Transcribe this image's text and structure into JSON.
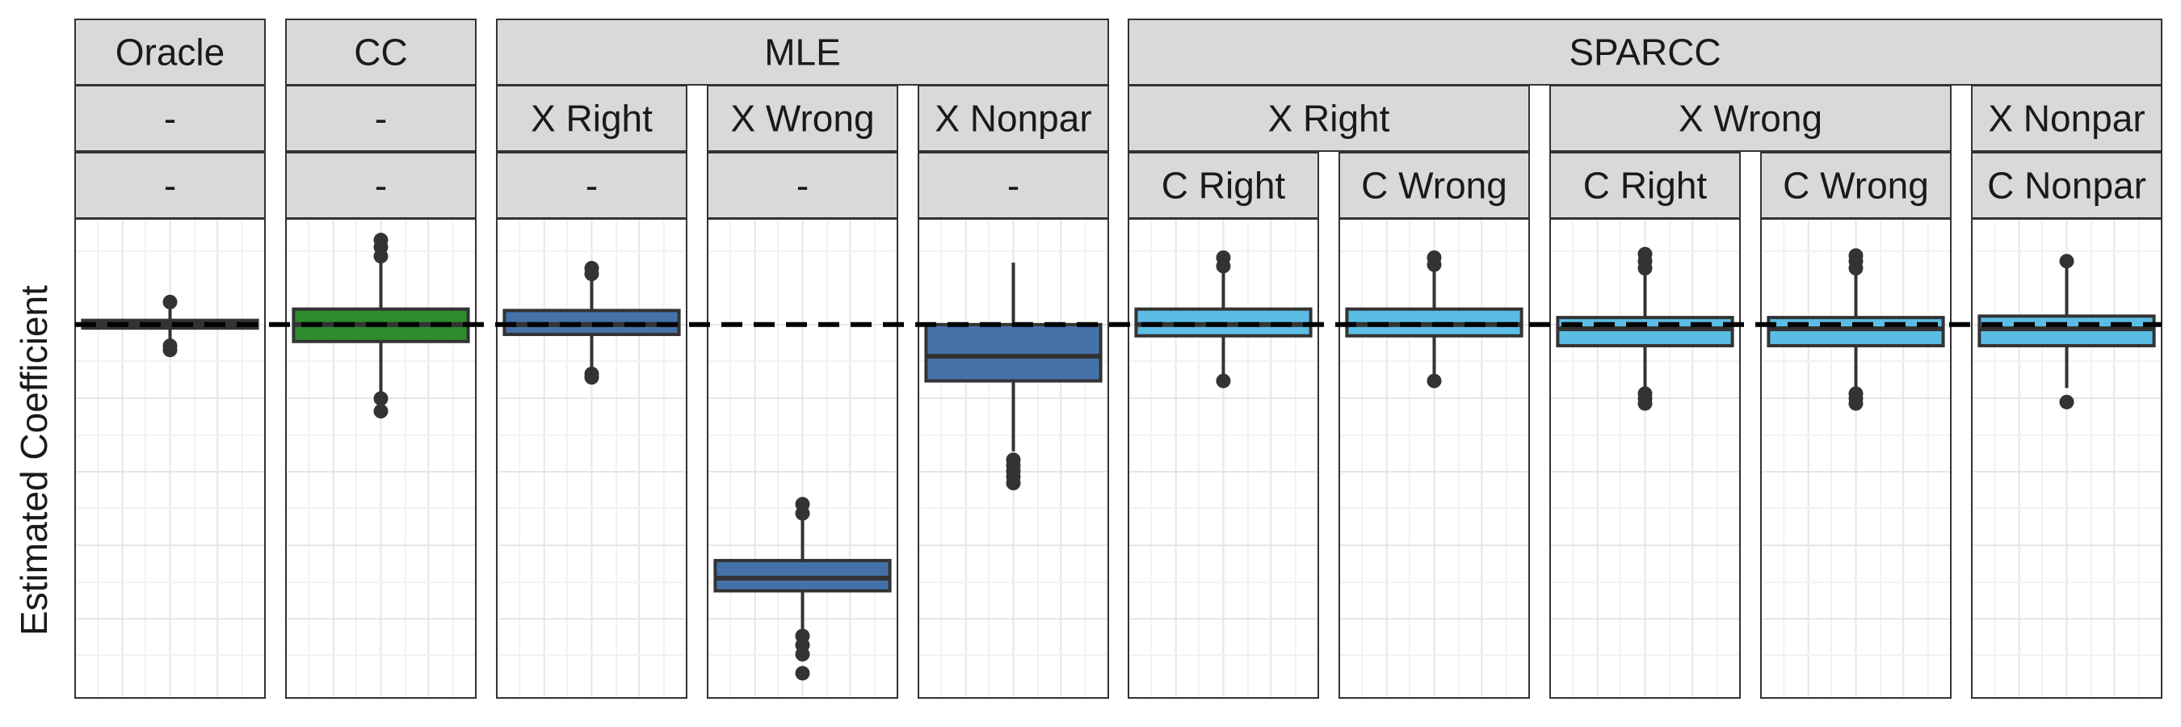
{
  "chart_data": {
    "type": "box",
    "ylabel": "Estimated Coefficient",
    "y_tick_labels_shown": false,
    "reference_line": {
      "value": 0,
      "style": "dashed",
      "color": "#000000"
    },
    "ylim": [
      -5.3,
      1.5
    ],
    "grid": true,
    "strips": {
      "top": [
        {
          "label": "Oracle",
          "span": [
            0,
            0
          ]
        },
        {
          "label": "CC",
          "span": [
            1,
            1
          ]
        },
        {
          "label": "MLE",
          "span": [
            2,
            4
          ]
        },
        {
          "label": "SPARCC",
          "span": [
            5,
            9
          ]
        }
      ],
      "middle": [
        {
          "label": "-",
          "span": [
            0,
            0
          ]
        },
        {
          "label": "-",
          "span": [
            1,
            1
          ]
        },
        {
          "label": "X Right",
          "span": [
            2,
            2
          ]
        },
        {
          "label": "X Wrong",
          "span": [
            3,
            3
          ]
        },
        {
          "label": "X Nonpar",
          "span": [
            4,
            4
          ]
        },
        {
          "label": "X Right",
          "span": [
            5,
            6
          ]
        },
        {
          "label": "X Wrong",
          "span": [
            7,
            8
          ]
        },
        {
          "label": "X Nonpar",
          "span": [
            9,
            9
          ]
        }
      ],
      "bottom": [
        "-",
        "-",
        "-",
        "-",
        "-",
        "C Right",
        "C Wrong",
        "C Right",
        "C Wrong",
        "C Nonpar"
      ]
    },
    "panels": [
      {
        "q1": -0.05,
        "median": 0.0,
        "q3": 0.06,
        "whisker_low": -0.25,
        "whisker_high": 0.3,
        "outliers": [
          0.32,
          -0.3,
          -0.36
        ],
        "fill": "#333333"
      },
      {
        "q1": -0.24,
        "median": 0.0,
        "q3": 0.22,
        "whisker_low": -1.05,
        "whisker_high": 1.1,
        "outliers": [
          1.2,
          1.1,
          0.97,
          -1.05,
          -1.23
        ],
        "fill": "#2e8b2e"
      },
      {
        "q1": -0.14,
        "median": 0.0,
        "q3": 0.2,
        "whisker_low": -0.65,
        "whisker_high": 0.75,
        "outliers": [
          0.8,
          0.72,
          -0.7,
          -0.75
        ],
        "fill": "#4472a8"
      },
      {
        "q1": -3.78,
        "median": -3.6,
        "q3": -3.35,
        "whisker_low": -4.45,
        "whisker_high": -2.7,
        "outliers": [
          -2.55,
          -2.68,
          -4.42,
          -4.55,
          -4.68,
          -4.95
        ],
        "fill": "#4472a8"
      },
      {
        "q1": -0.8,
        "median": -0.45,
        "q3": 0.0,
        "whisker_low": -1.8,
        "whisker_high": 0.88,
        "outliers": [
          -1.92,
          -2.0,
          -2.08,
          -2.16,
          -2.25
        ],
        "fill": "#4472a8"
      },
      {
        "q1": -0.16,
        "median": 0.0,
        "q3": 0.22,
        "whisker_low": -0.8,
        "whisker_high": 0.9,
        "outliers": [
          0.95,
          0.83,
          -0.8
        ],
        "fill": "#5bbde4"
      },
      {
        "q1": -0.16,
        "median": 0.0,
        "q3": 0.22,
        "whisker_low": -0.8,
        "whisker_high": 0.9,
        "outliers": [
          0.95,
          0.85,
          -0.8
        ],
        "fill": "#5bbde4"
      },
      {
        "q1": -0.3,
        "median": -0.06,
        "q3": 0.1,
        "whisker_low": -1.0,
        "whisker_high": 0.9,
        "outliers": [
          1.0,
          0.9,
          0.8,
          -0.98,
          -1.05,
          -1.12
        ],
        "fill": "#5bbde4"
      },
      {
        "q1": -0.3,
        "median": -0.06,
        "q3": 0.1,
        "whisker_low": -1.0,
        "whisker_high": 0.9,
        "outliers": [
          0.98,
          0.9,
          0.8,
          -0.98,
          -1.05,
          -1.12
        ],
        "fill": "#5bbde4"
      },
      {
        "q1": -0.3,
        "median": -0.06,
        "q3": 0.12,
        "whisker_low": -0.9,
        "whisker_high": 0.88,
        "outliers": [
          0.9,
          -1.1
        ],
        "fill": "#5bbde4"
      }
    ],
    "colors": {
      "strip_fill": "#d9d9d9",
      "strip_border": "#333333",
      "panel_border": "#333333",
      "grid_major": "#e6e6e6",
      "grid_minor": "#f2f2f2",
      "box_border": "#333333",
      "point": "#333333"
    }
  }
}
